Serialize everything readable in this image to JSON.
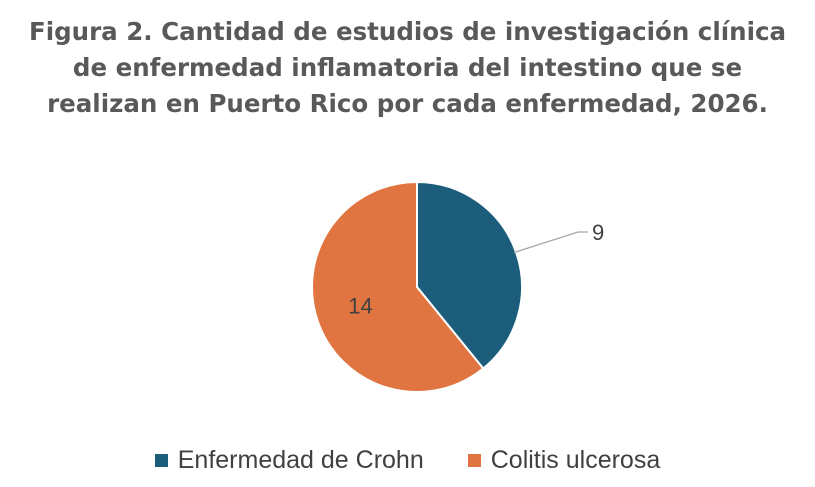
{
  "chart_data": {
    "type": "pie",
    "title_lines": [
      "Figura 2. Cantidad de estudios de investigación clínica",
      "de enfermedad inflamatoria del intestino que se",
      "realizan en Puerto Rico por cada enfermedad, 2026."
    ],
    "slices": [
      {
        "label": "Enfermedad de Crohn",
        "value": 9,
        "value_label": "9",
        "color": "#1b5d7a"
      },
      {
        "label": "Colitis ulcerosa",
        "value": 14,
        "value_label": "14",
        "color": "#e07541"
      }
    ],
    "legend_position": "bottom",
    "start_angle_deg": 0,
    "direction": "clockwise"
  }
}
